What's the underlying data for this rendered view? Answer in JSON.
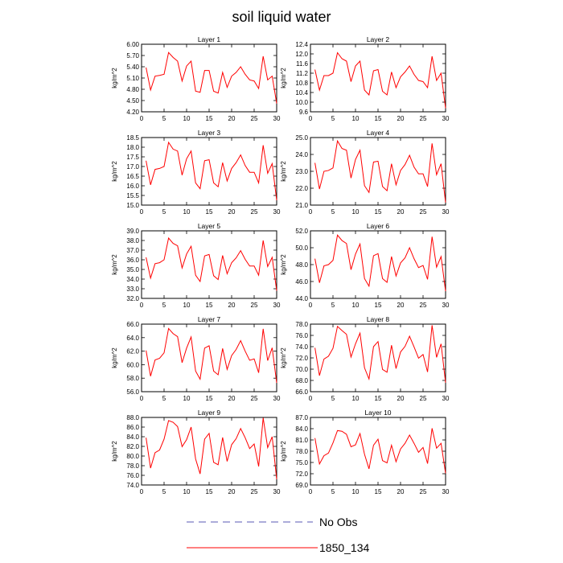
{
  "figure": {
    "title": "soil liquid water"
  },
  "legend": [
    {
      "label": "No Obs",
      "color": "#5a5ab4",
      "style": "dashed"
    },
    {
      "label": "1850_134",
      "color": "#ff0000",
      "style": "solid"
    }
  ],
  "chart_data": [
    {
      "type": "line",
      "title": "Layer 1",
      "xlabel": "",
      "ylabel": "kg/m^2",
      "xlim": [
        0,
        30
      ],
      "ylim": [
        4.2,
        6.0
      ],
      "xticks": [
        0,
        5,
        10,
        15,
        20,
        25,
        30
      ],
      "yticks": [
        4.2,
        4.5,
        4.8,
        5.1,
        5.4,
        5.7,
        6.0
      ],
      "ytick_labels": [
        "4.20",
        "4.50",
        "4.80",
        "5.10",
        "5.40",
        "5.70",
        "6.00"
      ],
      "series": [
        {
          "name": "1850_134",
          "color": "#ff0000",
          "x": [
            1,
            2,
            3,
            4,
            5,
            6,
            7,
            8,
            9,
            10,
            11,
            12,
            13,
            14,
            15,
            16,
            17,
            18,
            19,
            20,
            21,
            22,
            23,
            24,
            25,
            26,
            27,
            28,
            29,
            30
          ],
          "values": [
            5.38,
            4.78,
            5.15,
            5.17,
            5.2,
            5.78,
            5.65,
            5.55,
            5.02,
            5.42,
            5.55,
            4.75,
            4.72,
            5.3,
            5.3,
            4.75,
            4.7,
            5.25,
            4.85,
            5.15,
            5.25,
            5.4,
            5.2,
            5.05,
            5.02,
            4.82,
            5.68,
            5.05,
            5.15,
            4.42
          ]
        }
      ]
    },
    {
      "type": "line",
      "title": "Layer 2",
      "xlabel": "",
      "ylabel": "kg/m^2",
      "xlim": [
        0,
        30
      ],
      "ylim": [
        9.6,
        12.4
      ],
      "xticks": [
        0,
        5,
        10,
        15,
        20,
        25,
        30
      ],
      "yticks": [
        9.6,
        10.0,
        10.4,
        10.8,
        11.2,
        11.6,
        12.0,
        12.4
      ],
      "ytick_labels": [
        "9.6",
        "10.0",
        "10.4",
        "10.8",
        "11.2",
        "11.6",
        "12.0",
        "12.4"
      ],
      "series": [
        {
          "name": "1850_134",
          "color": "#ff0000",
          "x": [
            1,
            2,
            3,
            4,
            5,
            6,
            7,
            8,
            9,
            10,
            11,
            12,
            13,
            14,
            15,
            16,
            17,
            18,
            19,
            20,
            21,
            22,
            23,
            24,
            25,
            26,
            27,
            28,
            29,
            30
          ],
          "values": [
            11.35,
            10.5,
            11.1,
            11.1,
            11.2,
            12.05,
            11.8,
            11.7,
            10.85,
            11.5,
            11.7,
            10.5,
            10.3,
            11.3,
            11.35,
            10.45,
            10.3,
            11.25,
            10.6,
            11.05,
            11.25,
            11.5,
            11.15,
            10.9,
            10.85,
            10.6,
            11.9,
            10.9,
            11.2,
            9.75
          ]
        }
      ]
    },
    {
      "type": "line",
      "title": "Layer 3",
      "xlabel": "",
      "ylabel": "kg/m^2",
      "xlim": [
        0,
        30
      ],
      "ylim": [
        15.0,
        18.5
      ],
      "xticks": [
        0,
        5,
        10,
        15,
        20,
        25,
        30
      ],
      "yticks": [
        15.0,
        15.5,
        16.0,
        16.5,
        17.0,
        17.5,
        18.0,
        18.5
      ],
      "ytick_labels": [
        "15.0",
        "15.5",
        "16.0",
        "16.5",
        "17.0",
        "17.5",
        "18.0",
        "18.5"
      ],
      "series": [
        {
          "name": "1850_134",
          "color": "#ff0000",
          "x": [
            1,
            2,
            3,
            4,
            5,
            6,
            7,
            8,
            9,
            10,
            11,
            12,
            13,
            14,
            15,
            16,
            17,
            18,
            19,
            20,
            21,
            22,
            23,
            24,
            25,
            26,
            27,
            28,
            29,
            30
          ],
          "values": [
            17.3,
            16.05,
            16.85,
            16.9,
            17.0,
            18.25,
            17.9,
            17.8,
            16.55,
            17.4,
            17.8,
            16.15,
            15.85,
            17.3,
            17.35,
            16.15,
            15.95,
            17.2,
            16.25,
            16.9,
            17.2,
            17.6,
            17.05,
            16.7,
            16.7,
            16.15,
            18.1,
            16.65,
            17.15,
            15.25
          ]
        }
      ]
    },
    {
      "type": "line",
      "title": "Layer 4",
      "xlabel": "",
      "ylabel": "kg/m^2",
      "xlim": [
        0,
        30
      ],
      "ylim": [
        21.0,
        25.0
      ],
      "xticks": [
        0,
        5,
        10,
        15,
        20,
        25,
        30
      ],
      "yticks": [
        21.0,
        22.0,
        23.0,
        24.0,
        25.0
      ],
      "ytick_labels": [
        "21.0",
        "22.0",
        "23.0",
        "24.0",
        "25.0"
      ],
      "series": [
        {
          "name": "1850_134",
          "color": "#ff0000",
          "x": [
            1,
            2,
            3,
            4,
            5,
            6,
            7,
            8,
            9,
            10,
            11,
            12,
            13,
            14,
            15,
            16,
            17,
            18,
            19,
            20,
            21,
            22,
            23,
            24,
            25,
            26,
            27,
            28,
            29,
            30
          ],
          "values": [
            23.5,
            21.95,
            23.0,
            23.05,
            23.2,
            24.8,
            24.35,
            24.25,
            22.6,
            23.7,
            24.25,
            22.15,
            21.75,
            23.55,
            23.6,
            22.1,
            21.85,
            23.45,
            22.2,
            23.05,
            23.4,
            23.95,
            23.25,
            22.85,
            22.85,
            22.1,
            24.65,
            22.8,
            23.45,
            21.15
          ]
        }
      ]
    },
    {
      "type": "line",
      "title": "Layer 5",
      "xlabel": "",
      "ylabel": "kg/m^2",
      "xlim": [
        0,
        30
      ],
      "ylim": [
        32.0,
        39.0
      ],
      "xticks": [
        0,
        5,
        10,
        15,
        20,
        25,
        30
      ],
      "yticks": [
        32.0,
        33.0,
        34.0,
        35.0,
        36.0,
        37.0,
        38.0,
        39.0
      ],
      "ytick_labels": [
        "32.0",
        "33.0",
        "34.0",
        "35.0",
        "36.0",
        "37.0",
        "38.0",
        "39.0"
      ],
      "series": [
        {
          "name": "1850_134",
          "color": "#ff0000",
          "x": [
            1,
            2,
            3,
            4,
            5,
            6,
            7,
            8,
            9,
            10,
            11,
            12,
            13,
            14,
            15,
            16,
            17,
            18,
            19,
            20,
            21,
            22,
            23,
            24,
            25,
            26,
            27,
            28,
            29,
            30
          ],
          "values": [
            36.25,
            34.1,
            35.6,
            35.7,
            36.0,
            38.25,
            37.7,
            37.45,
            35.15,
            36.6,
            37.4,
            34.4,
            33.75,
            36.4,
            36.55,
            34.35,
            33.95,
            36.45,
            34.55,
            35.7,
            36.2,
            36.95,
            36.05,
            35.35,
            35.35,
            34.4,
            38.0,
            35.3,
            36.25,
            32.8
          ]
        }
      ]
    },
    {
      "type": "line",
      "title": "Layer 6",
      "xlabel": "",
      "ylabel": "kg/m^2",
      "xlim": [
        0,
        30
      ],
      "ylim": [
        44.0,
        52.0
      ],
      "xticks": [
        0,
        5,
        10,
        15,
        20,
        25,
        30
      ],
      "yticks": [
        44.0,
        46.0,
        48.0,
        50.0,
        52.0
      ],
      "ytick_labels": [
        "44.0",
        "46.0",
        "48.0",
        "50.0",
        "52.0"
      ],
      "series": [
        {
          "name": "1850_134",
          "color": "#ff0000",
          "x": [
            1,
            2,
            3,
            4,
            5,
            6,
            7,
            8,
            9,
            10,
            11,
            12,
            13,
            14,
            15,
            16,
            17,
            18,
            19,
            20,
            21,
            22,
            23,
            24,
            25,
            26,
            27,
            28,
            29,
            30
          ],
          "values": [
            48.7,
            45.85,
            47.85,
            48.0,
            48.5,
            51.5,
            50.85,
            50.5,
            47.4,
            49.25,
            50.45,
            46.35,
            45.45,
            49.05,
            49.3,
            46.35,
            45.9,
            48.95,
            46.65,
            48.2,
            48.8,
            50.0,
            48.7,
            47.65,
            47.9,
            46.25,
            51.3,
            47.7,
            48.95,
            44.85
          ]
        }
      ]
    },
    {
      "type": "line",
      "title": "Layer 7",
      "xlabel": "",
      "ylabel": "kg/m^2",
      "xlim": [
        0,
        30
      ],
      "ylim": [
        56.0,
        66.0
      ],
      "xticks": [
        0,
        5,
        10,
        15,
        20,
        25,
        30
      ],
      "yticks": [
        56.0,
        58.0,
        60.0,
        62.0,
        64.0,
        66.0
      ],
      "ytick_labels": [
        "56.0",
        "58.0",
        "60.0",
        "62.0",
        "64.0",
        "66.0"
      ],
      "series": [
        {
          "name": "1850_134",
          "color": "#ff0000",
          "x": [
            1,
            2,
            3,
            4,
            5,
            6,
            7,
            8,
            9,
            10,
            11,
            12,
            13,
            14,
            15,
            16,
            17,
            18,
            19,
            20,
            21,
            22,
            23,
            24,
            25,
            26,
            27,
            28,
            29,
            30
          ],
          "values": [
            62.1,
            58.3,
            60.7,
            60.95,
            61.75,
            65.35,
            64.6,
            64.15,
            60.3,
            62.45,
            64.1,
            59.05,
            57.85,
            62.45,
            62.8,
            59.05,
            58.5,
            62.4,
            59.3,
            61.35,
            62.25,
            63.55,
            62.0,
            60.65,
            60.85,
            58.8,
            65.3,
            60.6,
            62.5,
            57.3
          ]
        }
      ]
    },
    {
      "type": "line",
      "title": "Layer 8",
      "xlabel": "",
      "ylabel": "kg/m^2",
      "xlim": [
        0,
        30
      ],
      "ylim": [
        66.0,
        78.0
      ],
      "xticks": [
        0,
        5,
        10,
        15,
        20,
        25,
        30
      ],
      "yticks": [
        66.0,
        68.0,
        70.0,
        72.0,
        74.0,
        76.0,
        78.0
      ],
      "ytick_labels": [
        "66.0",
        "68.0",
        "70.0",
        "72.0",
        "74.0",
        "76.0",
        "78.0"
      ],
      "series": [
        {
          "name": "1850_134",
          "color": "#ff0000",
          "x": [
            1,
            2,
            3,
            4,
            5,
            6,
            7,
            8,
            9,
            10,
            11,
            12,
            13,
            14,
            15,
            16,
            17,
            18,
            19,
            20,
            21,
            22,
            23,
            24,
            25,
            26,
            27,
            28,
            29,
            30
          ],
          "values": [
            73.8,
            68.85,
            71.8,
            72.3,
            73.7,
            77.6,
            76.85,
            76.2,
            72.15,
            74.5,
            76.4,
            70.25,
            68.25,
            74.0,
            74.9,
            69.95,
            69.45,
            74.25,
            70.1,
            73.05,
            74.05,
            75.85,
            73.95,
            71.95,
            72.6,
            69.5,
            77.8,
            72.1,
            74.5,
            67.6
          ]
        }
      ]
    },
    {
      "type": "line",
      "title": "Layer 9",
      "xlabel": "",
      "ylabel": "kg/m^2",
      "xlim": [
        0,
        30
      ],
      "ylim": [
        74.0,
        88.0
      ],
      "xticks": [
        0,
        5,
        10,
        15,
        20,
        25,
        30
      ],
      "yticks": [
        74.0,
        76.0,
        78.0,
        80.0,
        82.0,
        84.0,
        86.0,
        88.0
      ],
      "ytick_labels": [
        "74.0",
        "76.0",
        "78.0",
        "80.0",
        "82.0",
        "84.0",
        "86.0",
        "88.0"
      ],
      "series": [
        {
          "name": "1850_134",
          "color": "#ff0000",
          "x": [
            1,
            2,
            3,
            4,
            5,
            6,
            7,
            8,
            9,
            10,
            11,
            12,
            13,
            14,
            15,
            16,
            17,
            18,
            19,
            20,
            21,
            22,
            23,
            24,
            25,
            26,
            27,
            28,
            29,
            30
          ],
          "values": [
            83.8,
            77.5,
            80.7,
            81.25,
            83.5,
            87.35,
            87.0,
            86.1,
            81.95,
            83.4,
            86.0,
            79.4,
            76.3,
            83.5,
            84.7,
            78.7,
            78.2,
            83.85,
            78.9,
            82.35,
            83.6,
            85.7,
            83.8,
            81.55,
            82.5,
            77.85,
            87.9,
            81.75,
            84.0,
            75.2
          ]
        }
      ]
    },
    {
      "type": "line",
      "title": "Layer 10",
      "xlabel": "",
      "ylabel": "kg/m^2",
      "xlim": [
        0,
        30
      ],
      "ylim": [
        69.0,
        87.0
      ],
      "xticks": [
        0,
        5,
        10,
        15,
        20,
        25,
        30
      ],
      "yticks": [
        69.0,
        72.0,
        75.0,
        78.0,
        81.0,
        84.0,
        87.0
      ],
      "ytick_labels": [
        "69.0",
        "72.0",
        "75.0",
        "78.0",
        "81.0",
        "84.0",
        "87.0"
      ],
      "series": [
        {
          "name": "1850_134",
          "color": "#ff0000",
          "x": [
            1,
            2,
            3,
            4,
            5,
            6,
            7,
            8,
            9,
            10,
            11,
            12,
            13,
            14,
            15,
            16,
            17,
            18,
            19,
            20,
            21,
            22,
            23,
            24,
            25,
            26,
            27,
            28,
            29,
            30
          ],
          "values": [
            81.5,
            74.6,
            76.8,
            77.5,
            80.2,
            83.5,
            83.3,
            82.5,
            79.2,
            79.7,
            82.7,
            77.2,
            73.3,
            79.6,
            81.2,
            75.5,
            74.9,
            79.6,
            75.2,
            78.6,
            80.1,
            82.3,
            80.1,
            77.7,
            79.0,
            74.7,
            84.1,
            78.8,
            80.1,
            72.1
          ]
        }
      ]
    }
  ]
}
